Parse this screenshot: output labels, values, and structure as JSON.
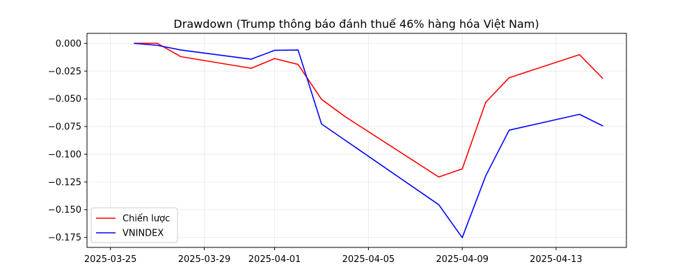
{
  "chart_data": {
    "type": "line",
    "title": "Drawdown (Trump thông báo đánh thuế 46% hàng hóa Việt Nam)",
    "xlabel": "",
    "ylabel": "",
    "x_ticks": [
      "2025-03-25",
      "2025-03-29",
      "2025-04-01",
      "2025-04-05",
      "2025-04-09",
      "2025-04-13"
    ],
    "y_ticks": [
      "0.000",
      "−0.025",
      "−0.050",
      "−0.075",
      "−0.100",
      "−0.125",
      "−0.150",
      "−0.175"
    ],
    "xlim": [
      "2025-03-24",
      "2025-04-16"
    ],
    "ylim": [
      -0.184,
      0.009
    ],
    "grid": true,
    "legend_position": "lower-left",
    "series": [
      {
        "name": "Chiến lược",
        "color": "#ff0000",
        "points": [
          {
            "x": "2025-03-26",
            "y": 0.0
          },
          {
            "x": "2025-03-27",
            "y": 0.0
          },
          {
            "x": "2025-03-28",
            "y": -0.012
          },
          {
            "x": "2025-03-31",
            "y": -0.0225
          },
          {
            "x": "2025-04-01",
            "y": -0.0137
          },
          {
            "x": "2025-04-02",
            "y": -0.019
          },
          {
            "x": "2025-04-03",
            "y": -0.0505
          },
          {
            "x": "2025-04-04",
            "y": -0.066
          },
          {
            "x": "2025-04-08",
            "y": -0.1205
          },
          {
            "x": "2025-04-09",
            "y": -0.1132
          },
          {
            "x": "2025-04-10",
            "y": -0.0532
          },
          {
            "x": "2025-04-11",
            "y": -0.031
          },
          {
            "x": "2025-04-14",
            "y": -0.0102
          },
          {
            "x": "2025-04-15",
            "y": -0.0318
          }
        ]
      },
      {
        "name": "VNINDEX",
        "color": "#0000ff",
        "points": [
          {
            "x": "2025-03-26",
            "y": 0.0
          },
          {
            "x": "2025-03-27",
            "y": -0.0018
          },
          {
            "x": "2025-03-28",
            "y": -0.006
          },
          {
            "x": "2025-03-31",
            "y": -0.0143
          },
          {
            "x": "2025-04-01",
            "y": -0.0063
          },
          {
            "x": "2025-04-02",
            "y": -0.006
          },
          {
            "x": "2025-04-03",
            "y": -0.0727
          },
          {
            "x": "2025-04-08",
            "y": -0.1455
          },
          {
            "x": "2025-04-09",
            "y": -0.1752
          },
          {
            "x": "2025-04-10",
            "y": -0.1195
          },
          {
            "x": "2025-04-11",
            "y": -0.0783
          },
          {
            "x": "2025-04-14",
            "y": -0.064
          },
          {
            "x": "2025-04-15",
            "y": -0.0745
          }
        ]
      }
    ]
  }
}
